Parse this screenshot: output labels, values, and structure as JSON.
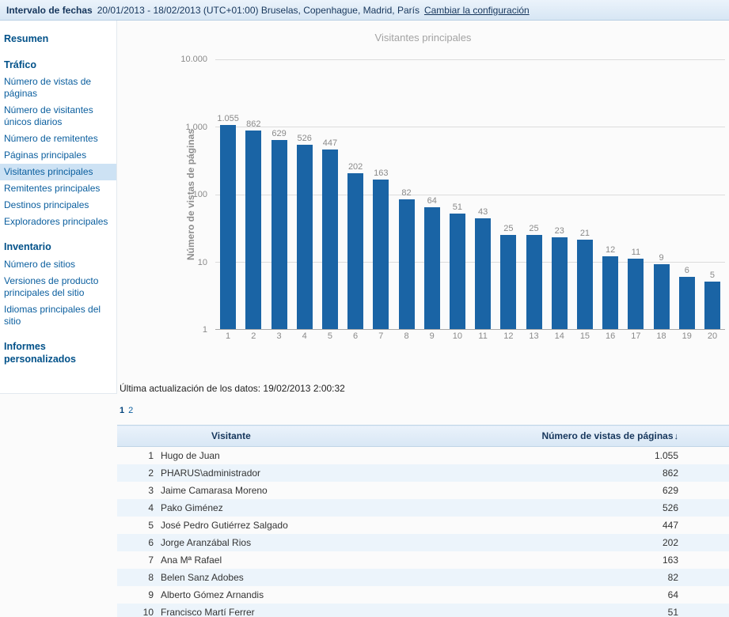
{
  "topbar": {
    "label": "Intervalo de fechas",
    "range": "20/01/2013 - 18/02/2013 (UTC+01:00) Bruselas, Copenhague, Madrid, París",
    "change_link": "Cambiar la configuración"
  },
  "sidebar": {
    "items": [
      {
        "label": "Resumen",
        "type": "header"
      },
      {
        "label": "Tráfico",
        "type": "header"
      },
      {
        "label": "Número de vistas de páginas",
        "type": "link"
      },
      {
        "label": "Número de visitantes únicos diarios",
        "type": "link"
      },
      {
        "label": "Número de remitentes",
        "type": "link"
      },
      {
        "label": "Páginas principales",
        "type": "link"
      },
      {
        "label": "Visitantes principales",
        "type": "selected"
      },
      {
        "label": "Remitentes principales",
        "type": "link"
      },
      {
        "label": "Destinos principales",
        "type": "link"
      },
      {
        "label": "Exploradores principales",
        "type": "link"
      },
      {
        "label": "Inventario",
        "type": "header"
      },
      {
        "label": "Número de sitios",
        "type": "link"
      },
      {
        "label": "Versiones de producto principales del sitio",
        "type": "link"
      },
      {
        "label": "Idiomas principales del sitio",
        "type": "link"
      },
      {
        "label": "Informes personalizados",
        "type": "header"
      }
    ]
  },
  "chart_data": {
    "type": "bar",
    "title": "Visitantes principales",
    "ylabel": "Número de vistas de páginas",
    "y_scale": "log",
    "ylim": [
      1,
      10000
    ],
    "grid": true,
    "bar_color": "#1a64a5",
    "y_ticks": [
      "10.000",
      "1.000",
      "100",
      "10",
      "1"
    ],
    "categories": [
      "1",
      "2",
      "3",
      "4",
      "5",
      "6",
      "7",
      "8",
      "9",
      "10",
      "11",
      "12",
      "13",
      "14",
      "15",
      "16",
      "17",
      "18",
      "19",
      "20"
    ],
    "values": [
      1055,
      862,
      629,
      526,
      447,
      202,
      163,
      82,
      64,
      51,
      43,
      25,
      25,
      23,
      21,
      12,
      11,
      9,
      6,
      5
    ],
    "value_labels": [
      "1.055",
      "862",
      "629",
      "526",
      "447",
      "202",
      "163",
      "82",
      "64",
      "51",
      "43",
      "25",
      "25",
      "23",
      "21",
      "12",
      "11",
      "9",
      "6",
      "5"
    ]
  },
  "status": {
    "last_update": "Última actualización de los datos: 19/02/2013 2:00:32"
  },
  "pagination": {
    "pages": [
      "1",
      "2"
    ],
    "current": "1"
  },
  "table": {
    "headers": {
      "visitor": "Visitante",
      "views": "Número de vistas de páginas",
      "sort_arrow": "↓"
    },
    "rows": [
      {
        "n": "1",
        "name": "Hugo de Juan",
        "value": "1.055"
      },
      {
        "n": "2",
        "name": "PHARUS\\administrador",
        "value": "862"
      },
      {
        "n": "3",
        "name": "Jaime Camarasa Moreno",
        "value": "629"
      },
      {
        "n": "4",
        "name": "Pako Giménez",
        "value": "526"
      },
      {
        "n": "5",
        "name": "José Pedro Gutiérrez Salgado",
        "value": "447"
      },
      {
        "n": "6",
        "name": "Jorge Aranzábal Rios",
        "value": "202"
      },
      {
        "n": "7",
        "name": "Ana Mª Rafael",
        "value": "163"
      },
      {
        "n": "8",
        "name": "Belen Sanz Adobes",
        "value": "82"
      },
      {
        "n": "9",
        "name": "Alberto Gómez Arnandis",
        "value": "64"
      },
      {
        "n": "10",
        "name": "Francisco Martí Ferrer",
        "value": "51"
      }
    ]
  }
}
